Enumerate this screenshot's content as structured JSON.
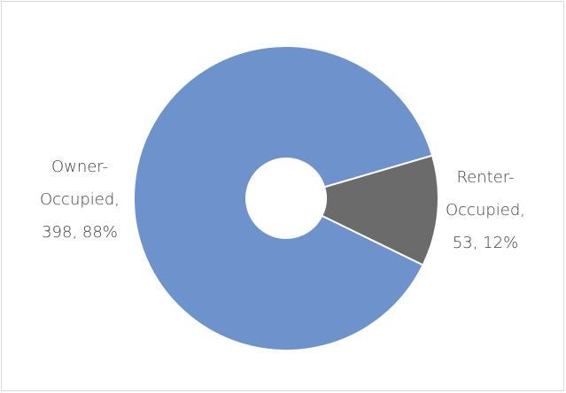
{
  "chart_data": {
    "type": "doughnut",
    "values": [
      398,
      53
    ],
    "value_labels": [
      "Owner-Occupied, 398, 88%",
      "Renter-Occupied, 53, 12%"
    ],
    "colors": [
      "#6e93cc",
      "#6b6b6b"
    ]
  }
}
